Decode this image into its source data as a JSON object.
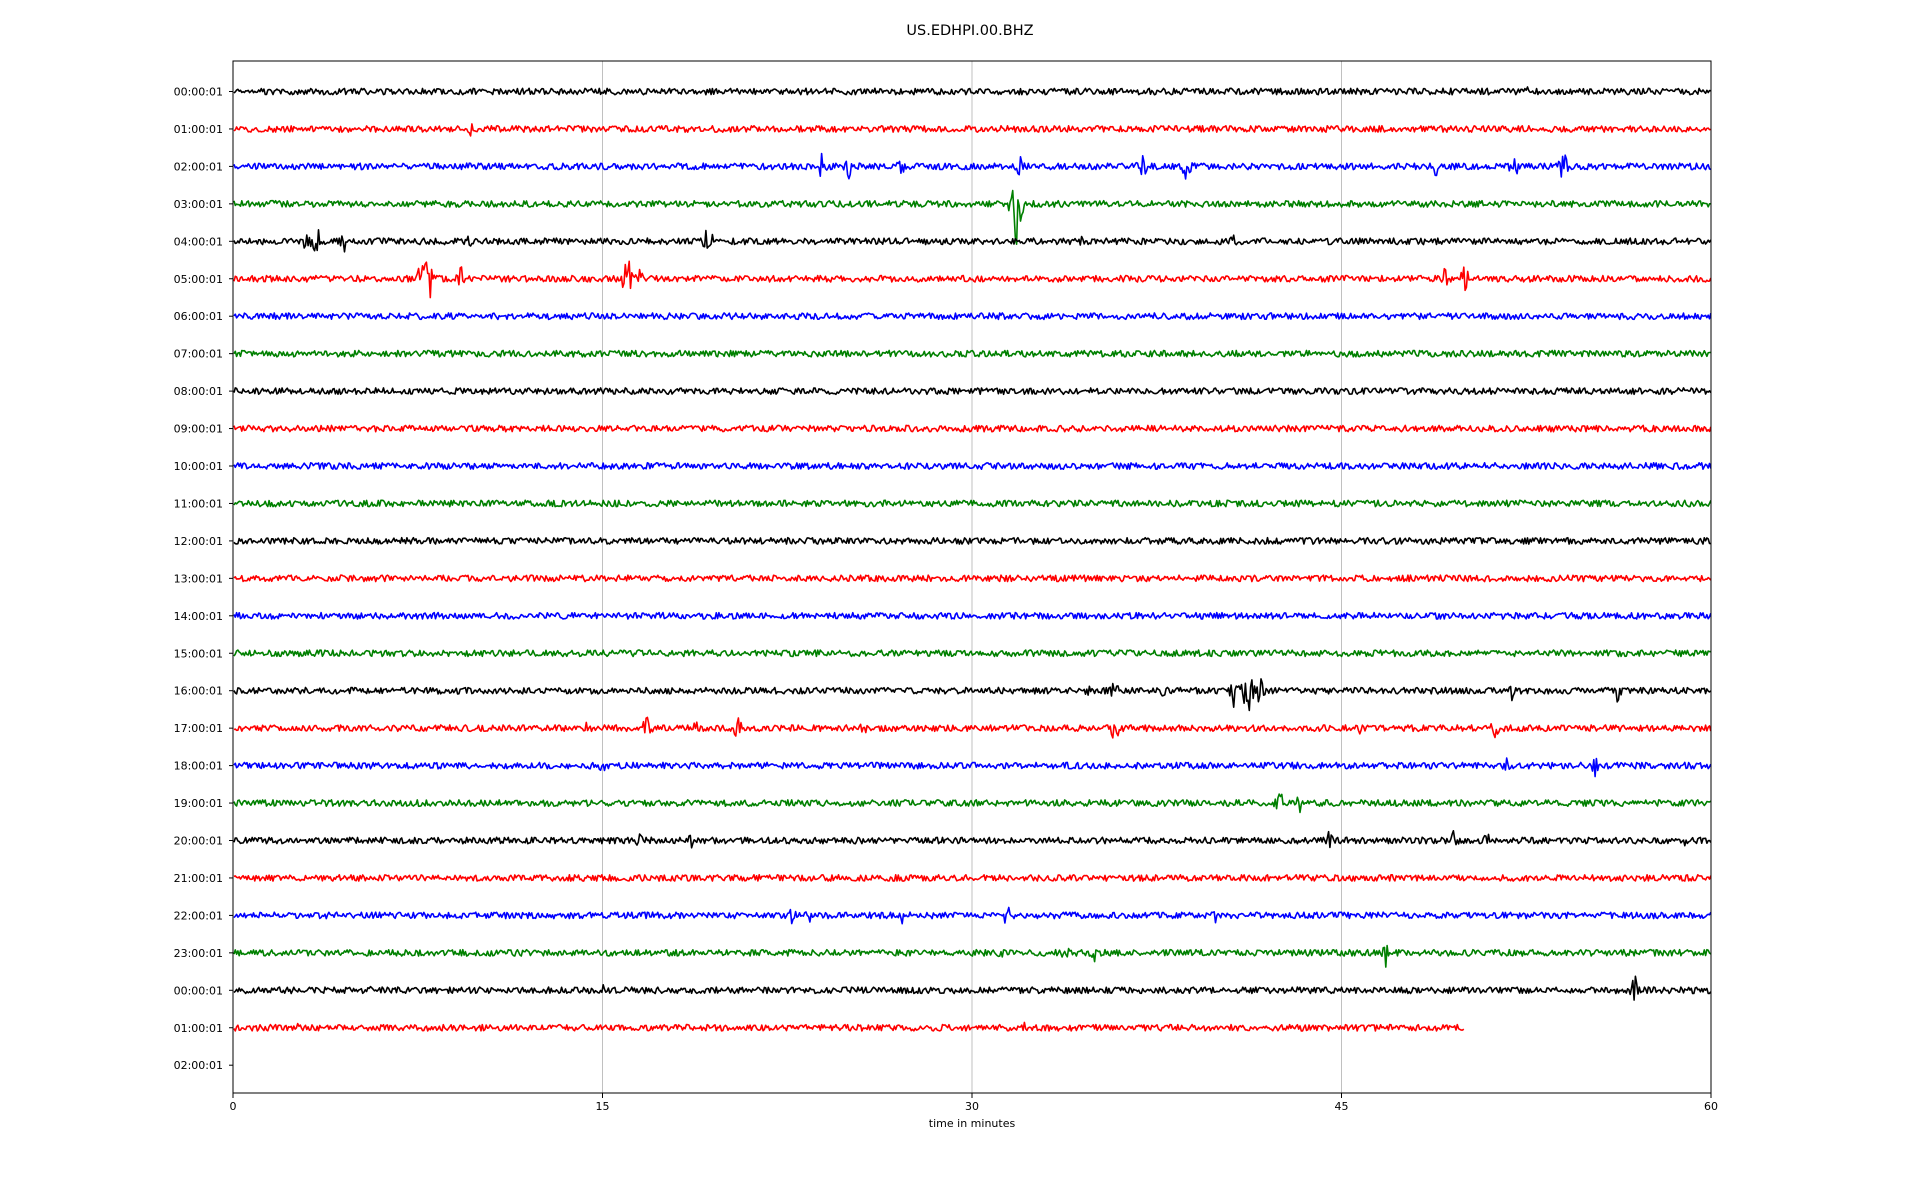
{
  "chart_data": {
    "type": "line",
    "title": "US.EDHPI.00.BHZ",
    "xlabel": "time in minutes",
    "ylabel": "",
    "xlim": [
      0,
      60
    ],
    "x_ticks": [
      0,
      15,
      30,
      45,
      60
    ],
    "grid": "vertical",
    "trace_colors": [
      "#000000",
      "#ff0000",
      "#0000ff",
      "#008000"
    ],
    "row_labels": [
      "00:00:01",
      "01:00:01",
      "02:00:01",
      "03:00:01",
      "04:00:01",
      "05:00:01",
      "06:00:01",
      "07:00:01",
      "08:00:01",
      "09:00:01",
      "10:00:01",
      "11:00:01",
      "12:00:01",
      "13:00:01",
      "14:00:01",
      "15:00:01",
      "16:00:01",
      "17:00:01",
      "18:00:01",
      "19:00:01",
      "20:00:01",
      "21:00:01",
      "22:00:01",
      "23:00:01",
      "00:00:01",
      "01:00:01",
      "02:00:01"
    ],
    "series": [
      {
        "label_time": "00:00:01",
        "end_minute": 60,
        "events": [
          {
            "t": 52.5,
            "amp": 0.25
          }
        ]
      },
      {
        "label_time": "01:00:01",
        "end_minute": 60,
        "events": [
          {
            "t": 9.6,
            "amp": 0.35
          }
        ]
      },
      {
        "label_time": "02:00:01",
        "end_minute": 60,
        "events": [
          {
            "t": 23.9,
            "amp": 0.45
          },
          {
            "t": 25.0,
            "amp": 0.45
          },
          {
            "t": 27.1,
            "amp": 0.5
          },
          {
            "t": 31.9,
            "amp": 0.5
          },
          {
            "t": 36.9,
            "amp": 0.6
          },
          {
            "t": 38.7,
            "amp": 0.55
          },
          {
            "t": 48.8,
            "amp": 0.45
          },
          {
            "t": 52.0,
            "amp": 0.55
          },
          {
            "t": 54.0,
            "amp": 0.6
          }
        ]
      },
      {
        "label_time": "03:00:01",
        "end_minute": 60,
        "events": [
          {
            "t": 31.8,
            "amp": 1.8
          }
        ]
      },
      {
        "label_time": "04:00:01",
        "end_minute": 60,
        "events": [
          {
            "t": 3.0,
            "amp": 0.55
          },
          {
            "t": 3.4,
            "amp": 0.7
          },
          {
            "t": 4.5,
            "amp": 0.4
          },
          {
            "t": 9.6,
            "amp": 0.3
          },
          {
            "t": 19.3,
            "amp": 0.65
          },
          {
            "t": 34.5,
            "amp": 0.3
          },
          {
            "t": 40.6,
            "amp": 0.3
          }
        ]
      },
      {
        "label_time": "05:00:01",
        "end_minute": 60,
        "events": [
          {
            "t": 7.5,
            "amp": 0.5
          },
          {
            "t": 7.85,
            "amp": 1.7
          },
          {
            "t": 9.2,
            "amp": 0.6
          },
          {
            "t": 16.0,
            "amp": 0.95
          },
          {
            "t": 16.5,
            "amp": 0.4
          },
          {
            "t": 49.2,
            "amp": 0.4
          },
          {
            "t": 50.0,
            "amp": 0.6
          }
        ]
      },
      {
        "label_time": "06:00:01",
        "end_minute": 60,
        "events": []
      },
      {
        "label_time": "07:00:01",
        "end_minute": 60,
        "events": []
      },
      {
        "label_time": "08:00:01",
        "end_minute": 60,
        "events": []
      },
      {
        "label_time": "09:00:01",
        "end_minute": 60,
        "events": []
      },
      {
        "label_time": "10:00:01",
        "end_minute": 60,
        "events": []
      },
      {
        "label_time": "11:00:01",
        "end_minute": 60,
        "events": []
      },
      {
        "label_time": "12:00:01",
        "end_minute": 60,
        "events": []
      },
      {
        "label_time": "13:00:01",
        "end_minute": 60,
        "events": []
      },
      {
        "label_time": "14:00:01",
        "end_minute": 60,
        "events": []
      },
      {
        "label_time": "15:00:01",
        "end_minute": 60,
        "events": []
      },
      {
        "label_time": "16:00:01",
        "end_minute": 60,
        "events": [
          {
            "t": 34.8,
            "amp": 0.4
          },
          {
            "t": 35.8,
            "amp": 0.45
          },
          {
            "t": 37.7,
            "amp": 0.3
          },
          {
            "t": 40.6,
            "amp": 0.9
          },
          {
            "t": 41.2,
            "amp": 1.1
          },
          {
            "t": 41.7,
            "amp": 0.6
          },
          {
            "t": 51.9,
            "amp": 0.35
          },
          {
            "t": 56.2,
            "amp": 0.4
          }
        ]
      },
      {
        "label_time": "17:00:01",
        "end_minute": 60,
        "events": [
          {
            "t": 14.3,
            "amp": 0.3
          },
          {
            "t": 16.8,
            "amp": 0.55
          },
          {
            "t": 18.8,
            "amp": 0.4
          },
          {
            "t": 20.5,
            "amp": 0.6
          },
          {
            "t": 25.6,
            "amp": 0.3
          },
          {
            "t": 35.8,
            "amp": 0.55
          },
          {
            "t": 45.8,
            "amp": 0.3
          },
          {
            "t": 51.2,
            "amp": 0.45
          }
        ]
      },
      {
        "label_time": "18:00:01",
        "end_minute": 60,
        "events": [
          {
            "t": 15.0,
            "amp": 0.3
          },
          {
            "t": 25.9,
            "amp": 0.3
          },
          {
            "t": 51.7,
            "amp": 0.35
          },
          {
            "t": 55.3,
            "amp": 0.35
          }
        ]
      },
      {
        "label_time": "19:00:01",
        "end_minute": 60,
        "events": [
          {
            "t": 42.5,
            "amp": 0.55
          },
          {
            "t": 43.3,
            "amp": 0.45
          }
        ]
      },
      {
        "label_time": "20:00:01",
        "end_minute": 60,
        "events": [
          {
            "t": 16.5,
            "amp": 0.3
          },
          {
            "t": 18.6,
            "amp": 0.35
          },
          {
            "t": 44.5,
            "amp": 0.35
          },
          {
            "t": 49.6,
            "amp": 0.45
          },
          {
            "t": 50.9,
            "amp": 0.4
          },
          {
            "t": 59.0,
            "amp": 0.3
          }
        ]
      },
      {
        "label_time": "21:00:01",
        "end_minute": 60,
        "events": []
      },
      {
        "label_time": "22:00:01",
        "end_minute": 60,
        "events": [
          {
            "t": 22.7,
            "amp": 0.3
          },
          {
            "t": 23.4,
            "amp": 0.3
          },
          {
            "t": 27.2,
            "amp": 0.35
          },
          {
            "t": 31.4,
            "amp": 0.45
          },
          {
            "t": 39.9,
            "amp": 0.25
          }
        ]
      },
      {
        "label_time": "23:00:01",
        "end_minute": 60,
        "events": [
          {
            "t": 31.2,
            "amp": 0.35
          },
          {
            "t": 33.8,
            "amp": 0.4
          },
          {
            "t": 35.0,
            "amp": 0.4
          },
          {
            "t": 46.8,
            "amp": 0.45
          }
        ]
      },
      {
        "label_time": "00:00:01",
        "end_minute": 60,
        "events": [
          {
            "t": 5.5,
            "amp": 0.25
          },
          {
            "t": 15.0,
            "amp": 0.25
          },
          {
            "t": 56.9,
            "amp": 0.55
          }
        ]
      },
      {
        "label_time": "01:00:01",
        "end_minute": 50,
        "events": [
          {
            "t": 2.7,
            "amp": 0.25
          },
          {
            "t": 32.1,
            "amp": 0.25
          }
        ]
      },
      {
        "label_time": "02:00:01",
        "end_minute": 0,
        "events": []
      }
    ]
  }
}
